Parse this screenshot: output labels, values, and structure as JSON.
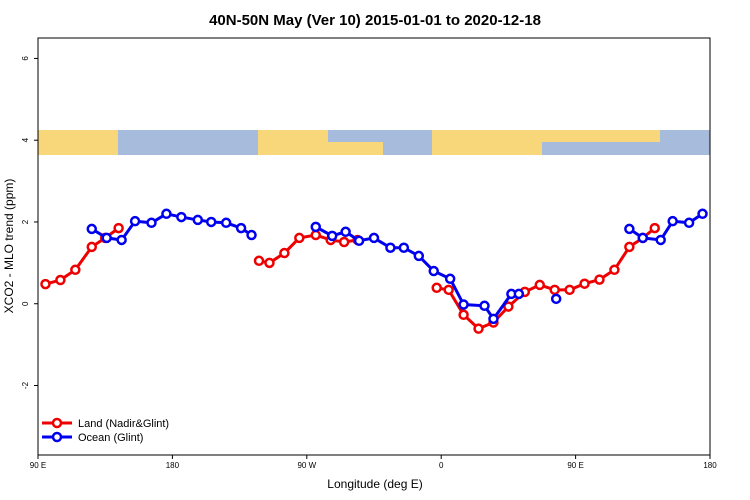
{
  "chart_data": {
    "type": "line",
    "title": "40N-50N May (Ver 10)   2015-01-01 to 2020-12-18",
    "x_label": "Longitude (deg E)",
    "y_label": "XCO2 - MLO trend (ppm)",
    "xlim": [
      90,
      540
    ],
    "ylim": [
      -3.7,
      6.5
    ],
    "xticks": [
      {
        "value": 90,
        "label": "90 E"
      },
      {
        "value": 180,
        "label": "180"
      },
      {
        "value": 270,
        "label": "90 W"
      },
      {
        "value": 360,
        "label": "0"
      },
      {
        "value": 450,
        "label": "90 E"
      },
      {
        "value": 540,
        "label": "180"
      }
    ],
    "yticks": [
      -2,
      0,
      2,
      4,
      6
    ],
    "legend": "bottom-left",
    "series": [
      {
        "name": "Land (Nadir&Glint)",
        "color": "#ee0000",
        "x": [
          95,
          105,
          115,
          126,
          135,
          144,
          null,
          238,
          245,
          255,
          265,
          276,
          286,
          295,
          304,
          null,
          357,
          365,
          375,
          385,
          395,
          405,
          416,
          426,
          436,
          446,
          456,
          466,
          476,
          486,
          495,
          503
        ],
        "values": [
          0.48,
          0.58,
          0.83,
          1.39,
          1.61,
          1.85,
          null,
          1.05,
          1.0,
          1.24,
          1.61,
          1.68,
          1.56,
          1.51,
          1.56,
          null,
          0.39,
          0.34,
          -0.27,
          -0.61,
          -0.46,
          -0.07,
          0.29,
          0.46,
          0.34,
          0.34,
          0.49,
          0.59,
          0.83,
          1.39,
          1.61,
          1.85
        ]
      },
      {
        "name": "Ocean (Glint)",
        "color": "#0000ee",
        "x": [
          126,
          136,
          146,
          155,
          166,
          176,
          186,
          197,
          206,
          216,
          226,
          233,
          null,
          276,
          287,
          296,
          305,
          315,
          326,
          335,
          345,
          355,
          366,
          375,
          389,
          395,
          407,
          412,
          null,
          437,
          null,
          486,
          495,
          507,
          515,
          526,
          535
        ],
        "values": [
          1.83,
          1.61,
          1.56,
          2.02,
          1.98,
          2.2,
          2.12,
          2.05,
          2.0,
          1.98,
          1.85,
          1.68,
          null,
          1.88,
          1.66,
          1.76,
          1.54,
          1.61,
          1.37,
          1.37,
          1.17,
          0.8,
          0.61,
          -0.02,
          -0.05,
          -0.37,
          0.24,
          0.24,
          null,
          0.12,
          null,
          1.83,
          1.61,
          1.56,
          2.02,
          1.98,
          2.2
        ]
      }
    ]
  }
}
